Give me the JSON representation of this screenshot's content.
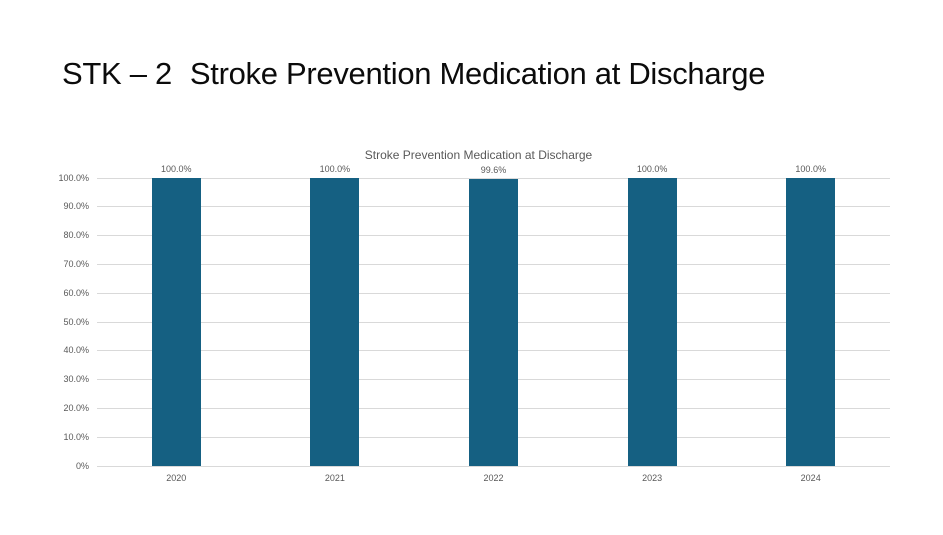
{
  "page": {
    "heading": {
      "prefix": "STK – 2",
      "title": "Stroke Prevention Medication at Discharge"
    }
  },
  "chart_data": {
    "type": "bar",
    "title": "Stroke Prevention Medication at Discharge",
    "categories": [
      "2020",
      "2021",
      "2022",
      "2023",
      "2024"
    ],
    "values": [
      100.0,
      100.0,
      99.6,
      100.0,
      100.0
    ],
    "data_labels": [
      "100.0%",
      "100.0%",
      "99.6%",
      "100.0%",
      "100.0%"
    ],
    "xlabel": "",
    "ylabel": "",
    "ylim": [
      0,
      100
    ],
    "y_tick_labels": [
      "0%",
      "10.0%",
      "20.0%",
      "30.0%",
      "40.0%",
      "50.0%",
      "60.0%",
      "70.0%",
      "80.0%",
      "90.0%",
      "100.0%"
    ],
    "grid": true,
    "legend": false,
    "colors": {
      "bar": "#156082",
      "gridline": "#D9D9D9",
      "axis_text": "#595959",
      "chart_title": "#595959",
      "data_label": "#595959",
      "heading_text": "#0b0b0b"
    }
  }
}
